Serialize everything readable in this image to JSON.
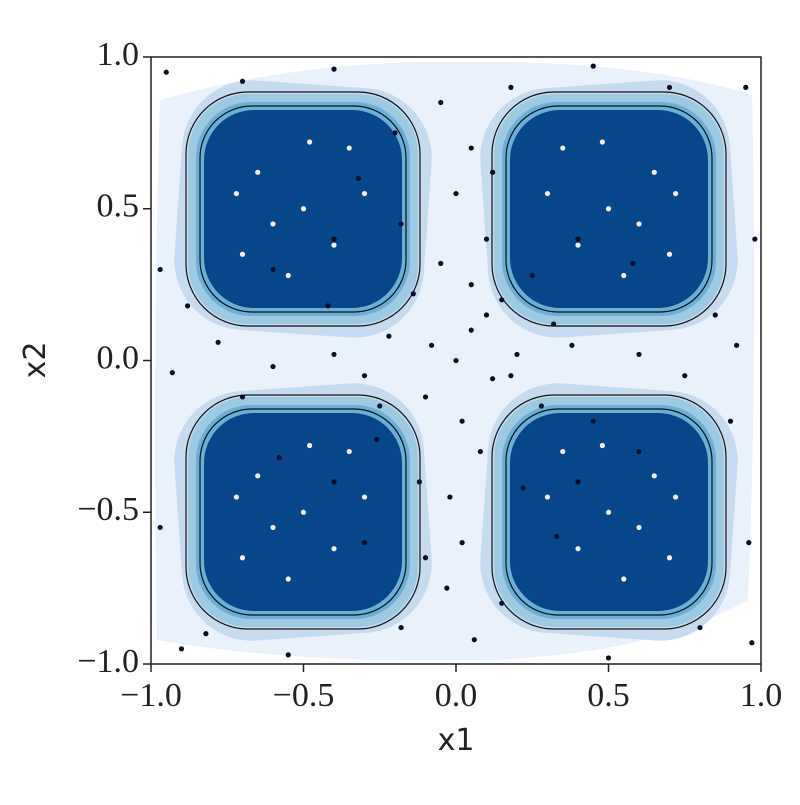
{
  "chart_data": {
    "type": "scatter",
    "xlabel": "x1",
    "ylabel": "x2",
    "xlim": [
      -1,
      1
    ],
    "ylim": [
      -1,
      1
    ],
    "xticks": [
      {
        "value": -1,
        "label": "−1.0"
      },
      {
        "value": -0.5,
        "label": "−0.5"
      },
      {
        "value": 0,
        "label": "0.0"
      },
      0.5,
      {
        "value": 1,
        "label": "1.0"
      }
    ],
    "yticks": [
      {
        "value": -1,
        "label": "−1.0"
      },
      {
        "value": -0.5,
        "label": "−0.5"
      },
      {
        "value": 0,
        "label": "0.0"
      },
      0.5,
      {
        "value": 1,
        "label": "1.0"
      }
    ],
    "series": [
      {
        "color": "#0b0b2a",
        "x": [
          0.0,
          0.05,
          -0.08,
          0.12,
          -0.1,
          0.02,
          0.2,
          -0.22,
          0.15,
          -0.14,
          0.08,
          -0.05,
          0.28,
          -0.3,
          0.25,
          -0.26,
          0.1,
          -0.12,
          0.38,
          -0.4,
          0.0,
          0.05,
          -0.05,
          0.02,
          -0.03,
          0.06,
          0.18,
          -0.2,
          0.15,
          -0.18,
          0.92,
          0.75,
          0.6,
          -0.6,
          -0.78,
          -0.93,
          0.9,
          -0.88,
          0.85,
          -0.7,
          0.95,
          -0.95,
          0.97,
          -0.9,
          0.98,
          -0.97,
          0.96,
          -0.97,
          0.45,
          -0.4,
          0.5,
          -0.55,
          0.3,
          -0.32,
          0.33,
          -0.3,
          0.58,
          -0.6,
          0.6,
          -0.58,
          0.22,
          -0.42,
          0.45,
          0.1,
          -0.02,
          0.32,
          -0.18,
          0.12,
          -0.1,
          0.7,
          -0.7,
          0.8,
          -0.82,
          0.05,
          -0.25,
          0.4,
          -0.4,
          0.4,
          -0.4,
          0.18
        ],
        "y": [
          0.0,
          0.1,
          0.05,
          -0.06,
          -0.12,
          -0.2,
          0.02,
          0.08,
          0.2,
          0.22,
          -0.3,
          0.32,
          -0.15,
          -0.05,
          0.28,
          -0.26,
          0.4,
          -0.4,
          0.05,
          0.02,
          0.55,
          0.7,
          0.85,
          -0.6,
          -0.75,
          -0.92,
          0.9,
          0.75,
          -0.8,
          -0.88,
          0.05,
          -0.05,
          0.02,
          -0.02,
          0.06,
          -0.04,
          -0.2,
          0.18,
          0.15,
          -0.12,
          0.9,
          0.95,
          -0.93,
          -0.95,
          0.4,
          0.3,
          -0.6,
          -0.55,
          0.97,
          0.96,
          -0.98,
          -0.97,
          0.55,
          0.6,
          -0.58,
          -0.6,
          0.32,
          0.3,
          -0.3,
          -0.32,
          -0.42,
          0.18,
          -0.2,
          0.15,
          -0.45,
          0.12,
          0.45,
          0.62,
          -0.65,
          0.9,
          0.92,
          -0.88,
          -0.9,
          0.25,
          -0.15,
          -0.4,
          0.4,
          0.4,
          -0.4,
          -0.05
        ]
      },
      {
        "color": "#fdf3e6",
        "x": [
          -0.5,
          -0.65,
          -0.35,
          -0.7,
          -0.4,
          -0.55,
          -0.3,
          -0.72,
          -0.48,
          -0.6,
          0.5,
          0.65,
          0.35,
          0.7,
          0.4,
          0.55,
          0.3,
          0.72,
          0.48,
          0.6,
          -0.5,
          -0.65,
          -0.35,
          -0.7,
          -0.4,
          -0.55,
          -0.3,
          -0.72,
          -0.48,
          -0.6,
          0.5,
          0.65,
          0.35,
          0.7,
          0.4,
          0.55,
          0.3,
          0.72,
          0.48,
          0.6
        ],
        "y": [
          0.5,
          0.62,
          0.7,
          0.35,
          0.38,
          0.28,
          0.55,
          0.55,
          0.72,
          0.45,
          0.5,
          0.62,
          0.7,
          0.35,
          0.38,
          0.28,
          0.55,
          0.55,
          0.72,
          0.45,
          -0.5,
          -0.38,
          -0.3,
          -0.65,
          -0.62,
          -0.72,
          -0.45,
          -0.45,
          -0.28,
          -0.55,
          -0.5,
          -0.38,
          -0.3,
          -0.65,
          -0.62,
          -0.72,
          -0.45,
          -0.45,
          -0.28,
          -0.55
        ]
      }
    ]
  }
}
